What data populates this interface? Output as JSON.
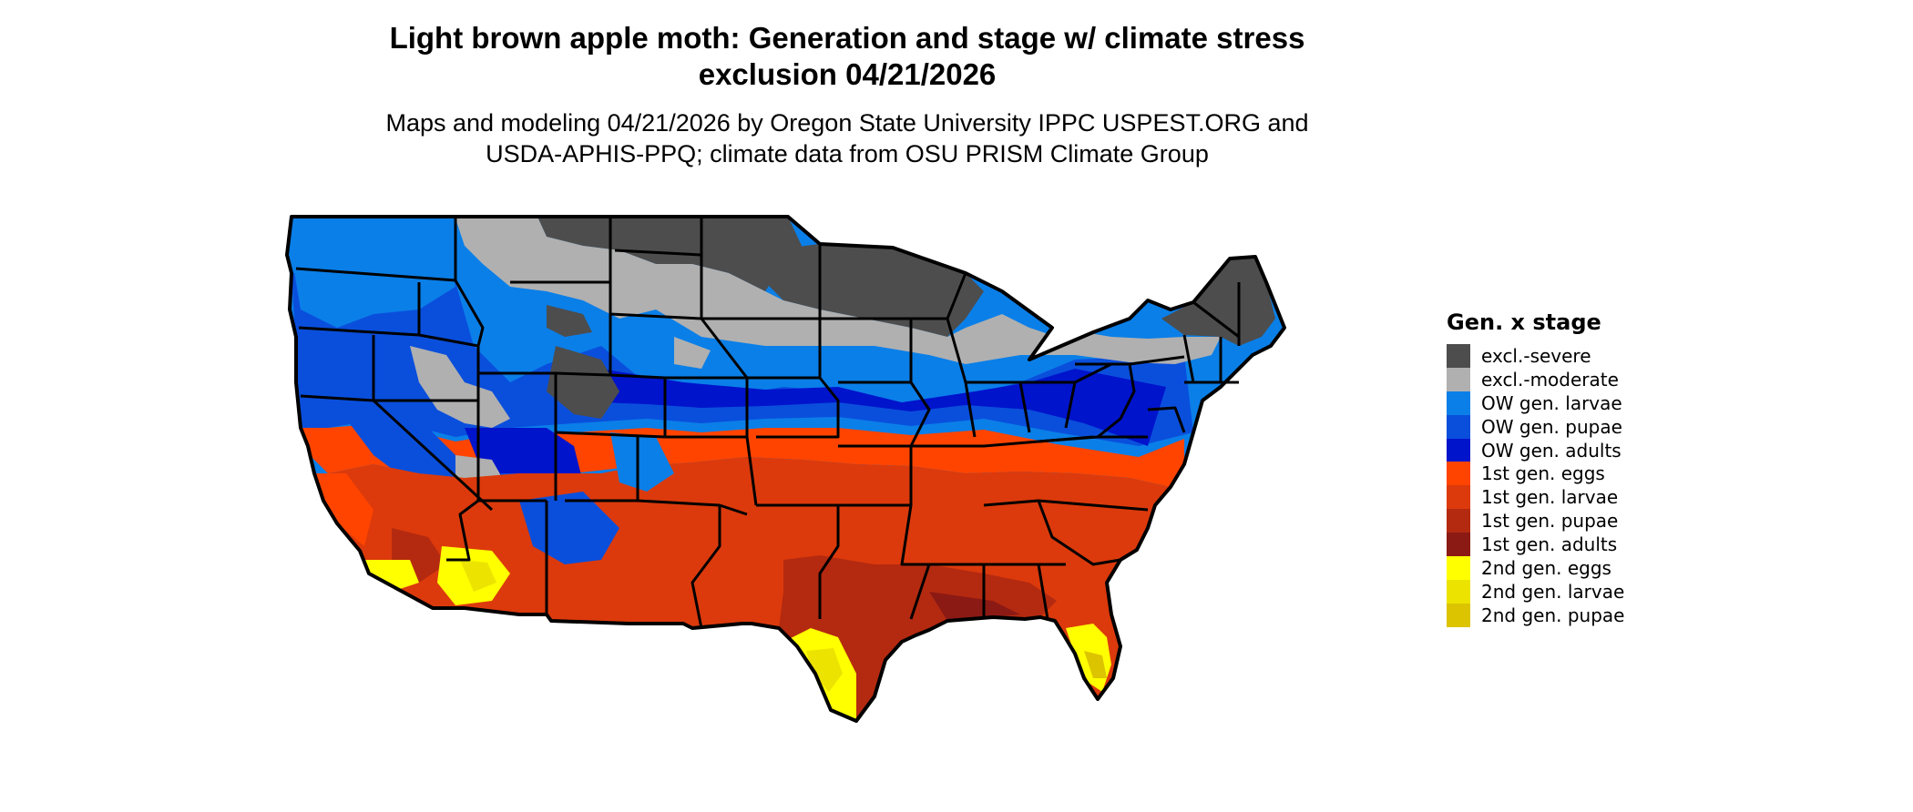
{
  "title": {
    "line1": "Light brown apple moth: Generation and stage w/ climate stress",
    "line2": "exclusion 04/21/2026"
  },
  "subtitle": {
    "line1": "Maps and modeling 04/21/2026 by Oregon State University IPPC USPEST.ORG and",
    "line2": "USDA-APHIS-PPQ; climate data from OSU PRISM Climate Group"
  },
  "legend": {
    "title": "Gen. x stage",
    "items": [
      {
        "label": "excl.-severe",
        "color": "#4d4d4d"
      },
      {
        "label": "excl.-moderate",
        "color": "#b0b0b0"
      },
      {
        "label": "OW gen. larvae",
        "color": "#0a7fe8"
      },
      {
        "label": "OW gen. pupae",
        "color": "#0a4fdc"
      },
      {
        "label": "OW gen. adults",
        "color": "#0014cc"
      },
      {
        "label": "1st gen. eggs",
        "color": "#ff4400"
      },
      {
        "label": "1st gen. larvae",
        "color": "#dc3a0c"
      },
      {
        "label": "1st gen. pupae",
        "color": "#b42a10"
      },
      {
        "label": "1st gen. adults",
        "color": "#8c1a14"
      },
      {
        "label": "2nd gen. eggs",
        "color": "#ffff00"
      },
      {
        "label": "2nd gen. larvae",
        "color": "#ece400"
      },
      {
        "label": "2nd gen. pupae",
        "color": "#dcc400"
      }
    ]
  }
}
